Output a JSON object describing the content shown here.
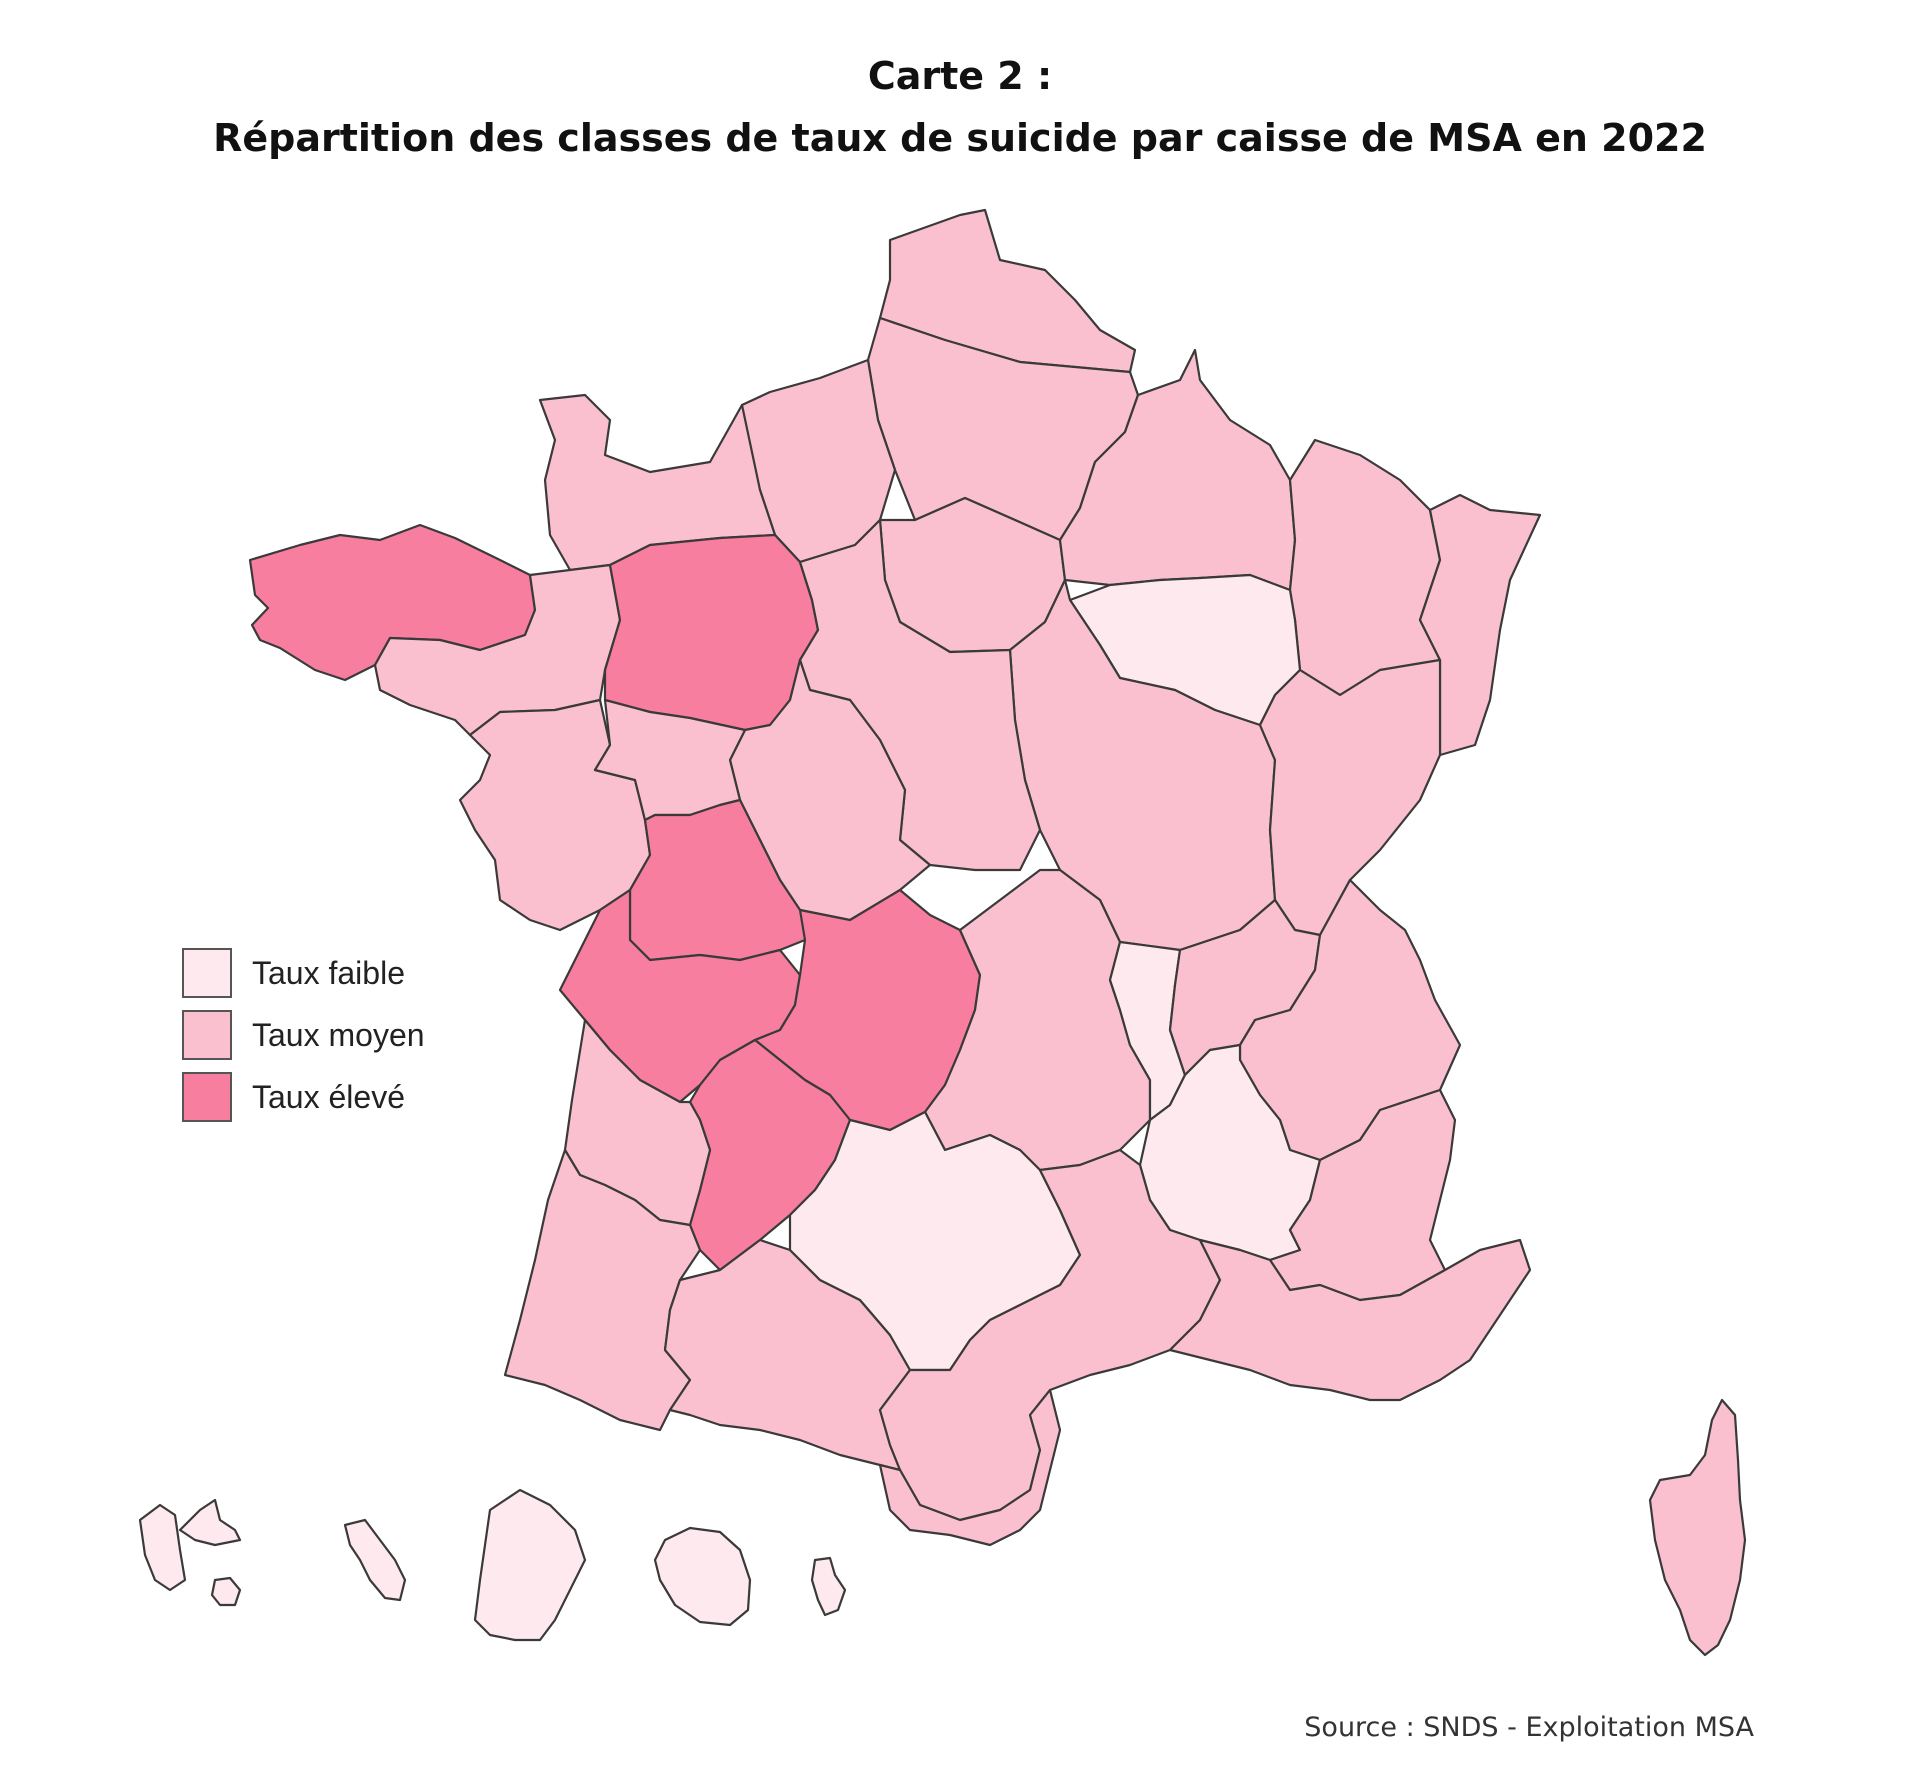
{
  "title_line1": "Carte 2 :",
  "title_line2": "Répartition des classes de taux de suicide par caisse de MSA en 2022",
  "legend": [
    {
      "label": "Taux faible",
      "class": "faible",
      "color": "#fde9ee"
    },
    {
      "label": "Taux moyen",
      "class": "moyen",
      "color": "#fbc0d0"
    },
    {
      "label": "Taux élevé",
      "class": "eleve",
      "color": "#f77e9f"
    }
  ],
  "source": "Source : SNDS - Exploitation MSA",
  "regions": [
    {
      "name": "nord-pas-de-calais",
      "class": "moyen"
    },
    {
      "name": "picardie",
      "class": "moyen"
    },
    {
      "name": "haute-normandie",
      "class": "moyen"
    },
    {
      "name": "cotes-normandes",
      "class": "moyen"
    },
    {
      "name": "ile-de-france",
      "class": "moyen"
    },
    {
      "name": "marne-ardennes-meuse",
      "class": "moyen"
    },
    {
      "name": "lorraine",
      "class": "moyen"
    },
    {
      "name": "alsace",
      "class": "moyen"
    },
    {
      "name": "sud-champagne",
      "class": "faible"
    },
    {
      "name": "bourgogne",
      "class": "moyen"
    },
    {
      "name": "franche-comte",
      "class": "moyen"
    },
    {
      "name": "armorique",
      "class": "eleve"
    },
    {
      "name": "portes-de-bretagne",
      "class": "moyen"
    },
    {
      "name": "mayenne-orne-sarthe",
      "class": "eleve"
    },
    {
      "name": "beauce-coeur-de-loire",
      "class": "moyen"
    },
    {
      "name": "berry-touraine",
      "class": "moyen"
    },
    {
      "name": "loire-atlantique-vendee",
      "class": "moyen"
    },
    {
      "name": "maine-et-loire",
      "class": "moyen"
    },
    {
      "name": "poitou",
      "class": "eleve"
    },
    {
      "name": "charentes",
      "class": "eleve"
    },
    {
      "name": "limousin",
      "class": "eleve"
    },
    {
      "name": "dordogne-lot-et-garonne",
      "class": "eleve"
    },
    {
      "name": "auvergne",
      "class": "moyen"
    },
    {
      "name": "loire",
      "class": "faible"
    },
    {
      "name": "ain-rhone",
      "class": "moyen"
    },
    {
      "name": "alpes-du-nord",
      "class": "moyen"
    },
    {
      "name": "ardeche-drome-loire",
      "class": "faible"
    },
    {
      "name": "alpes-vaucluse",
      "class": "moyen"
    },
    {
      "name": "gironde",
      "class": "moyen"
    },
    {
      "name": "sud-aquitaine",
      "class": "moyen"
    },
    {
      "name": "midi-pyrenees-sud",
      "class": "moyen"
    },
    {
      "name": "midi-pyrenees-nord",
      "class": "faible"
    },
    {
      "name": "languedoc",
      "class": "moyen"
    },
    {
      "name": "grand-sud",
      "class": "moyen"
    },
    {
      "name": "provence-azur",
      "class": "moyen"
    },
    {
      "name": "corse",
      "class": "moyen"
    },
    {
      "name": "guadeloupe",
      "class": "faible"
    },
    {
      "name": "martinique",
      "class": "faible"
    },
    {
      "name": "guyane",
      "class": "faible"
    },
    {
      "name": "la-reunion",
      "class": "faible"
    },
    {
      "name": "mayotte",
      "class": "faible"
    }
  ]
}
